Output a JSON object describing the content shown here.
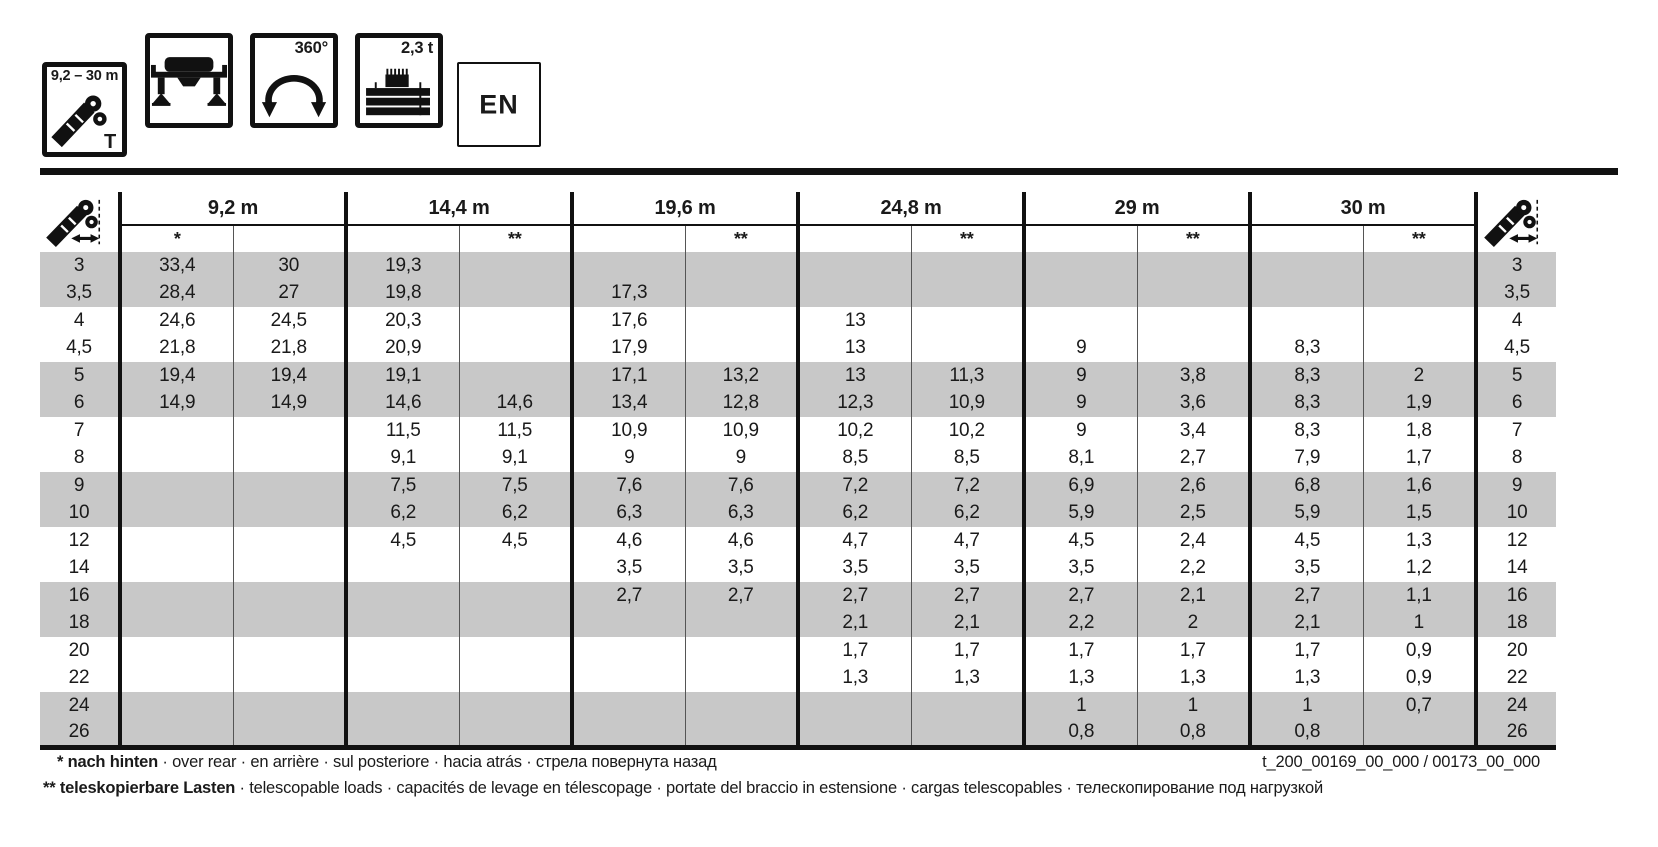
{
  "pictograms": {
    "boom_range": "9,2 – 30 m",
    "boom_type": "T",
    "rotation": "360°",
    "counterweight": "2,3 t",
    "language": "EN"
  },
  "colors": {
    "stripe": "#c8c8c8",
    "ink": "#111111"
  },
  "table": {
    "boom_lengths": [
      {
        "label": "9,2 m",
        "sub1": "*",
        "sub2": ""
      },
      {
        "label": "14,4 m",
        "sub1": "",
        "sub2": "**"
      },
      {
        "label": "19,6 m",
        "sub1": "",
        "sub2": "**"
      },
      {
        "label": "24,8 m",
        "sub1": "",
        "sub2": "**"
      },
      {
        "label": "29 m",
        "sub1": "",
        "sub2": "**"
      },
      {
        "label": "30 m",
        "sub1": "",
        "sub2": "**"
      }
    ],
    "rows": [
      {
        "radius": "3",
        "shaded": true,
        "values": [
          "33,4",
          "30",
          "19,3",
          "",
          "",
          "",
          "",
          "",
          "",
          "",
          "",
          ""
        ]
      },
      {
        "radius": "3,5",
        "shaded": true,
        "values": [
          "28,4",
          "27",
          "19,8",
          "",
          "17,3",
          "",
          "",
          "",
          "",
          "",
          "",
          ""
        ]
      },
      {
        "radius": "4",
        "shaded": false,
        "values": [
          "24,6",
          "24,5",
          "20,3",
          "",
          "17,6",
          "",
          "13",
          "",
          "",
          "",
          "",
          ""
        ]
      },
      {
        "radius": "4,5",
        "shaded": false,
        "values": [
          "21,8",
          "21,8",
          "20,9",
          "",
          "17,9",
          "",
          "13",
          "",
          "9",
          "",
          "8,3",
          ""
        ]
      },
      {
        "radius": "5",
        "shaded": true,
        "values": [
          "19,4",
          "19,4",
          "19,1",
          "",
          "17,1",
          "13,2",
          "13",
          "11,3",
          "9",
          "3,8",
          "8,3",
          "2"
        ]
      },
      {
        "radius": "6",
        "shaded": true,
        "values": [
          "14,9",
          "14,9",
          "14,6",
          "14,6",
          "13,4",
          "12,8",
          "12,3",
          "10,9",
          "9",
          "3,6",
          "8,3",
          "1,9"
        ]
      },
      {
        "radius": "7",
        "shaded": false,
        "values": [
          "",
          "",
          "11,5",
          "11,5",
          "10,9",
          "10,9",
          "10,2",
          "10,2",
          "9",
          "3,4",
          "8,3",
          "1,8"
        ]
      },
      {
        "radius": "8",
        "shaded": false,
        "values": [
          "",
          "",
          "9,1",
          "9,1",
          "9",
          "9",
          "8,5",
          "8,5",
          "8,1",
          "2,7",
          "7,9",
          "1,7"
        ]
      },
      {
        "radius": "9",
        "shaded": true,
        "values": [
          "",
          "",
          "7,5",
          "7,5",
          "7,6",
          "7,6",
          "7,2",
          "7,2",
          "6,9",
          "2,6",
          "6,8",
          "1,6"
        ]
      },
      {
        "radius": "10",
        "shaded": true,
        "values": [
          "",
          "",
          "6,2",
          "6,2",
          "6,3",
          "6,3",
          "6,2",
          "6,2",
          "5,9",
          "2,5",
          "5,9",
          "1,5"
        ]
      },
      {
        "radius": "12",
        "shaded": false,
        "values": [
          "",
          "",
          "4,5",
          "4,5",
          "4,6",
          "4,6",
          "4,7",
          "4,7",
          "4,5",
          "2,4",
          "4,5",
          "1,3"
        ]
      },
      {
        "radius": "14",
        "shaded": false,
        "values": [
          "",
          "",
          "",
          "",
          "3,5",
          "3,5",
          "3,5",
          "3,5",
          "3,5",
          "2,2",
          "3,5",
          "1,2"
        ]
      },
      {
        "radius": "16",
        "shaded": true,
        "values": [
          "",
          "",
          "",
          "",
          "2,7",
          "2,7",
          "2,7",
          "2,7",
          "2,7",
          "2,1",
          "2,7",
          "1,1"
        ]
      },
      {
        "radius": "18",
        "shaded": true,
        "values": [
          "",
          "",
          "",
          "",
          "",
          "",
          "2,1",
          "2,1",
          "2,2",
          "2",
          "2,1",
          "1"
        ]
      },
      {
        "radius": "20",
        "shaded": false,
        "values": [
          "",
          "",
          "",
          "",
          "",
          "",
          "1,7",
          "1,7",
          "1,7",
          "1,7",
          "1,7",
          "0,9"
        ]
      },
      {
        "radius": "22",
        "shaded": false,
        "values": [
          "",
          "",
          "",
          "",
          "",
          "",
          "1,3",
          "1,3",
          "1,3",
          "1,3",
          "1,3",
          "0,9"
        ]
      },
      {
        "radius": "24",
        "shaded": true,
        "values": [
          "",
          "",
          "",
          "",
          "",
          "",
          "",
          "",
          "1",
          "1",
          "1",
          "0,7"
        ]
      },
      {
        "radius": "26",
        "shaded": true,
        "values": [
          "",
          "",
          "",
          "",
          "",
          "",
          "",
          "",
          "0,8",
          "0,8",
          "0,8",
          ""
        ]
      }
    ]
  },
  "footnotes": {
    "note1_bold": "* nach hinten",
    "note1_rest": " · over rear · en arrière · sul posteriore · hacia atrás · стрела повернута назад",
    "note2_bold": "** teleskopierbare Lasten",
    "note2_rest": " · telescopable loads · capacités de levage en télescopage · portate del braccio in estensione · cargas telescopables · телескопирование под нагрузкой",
    "document_number": "t_200_00169_00_000 / 00173_00_000"
  }
}
